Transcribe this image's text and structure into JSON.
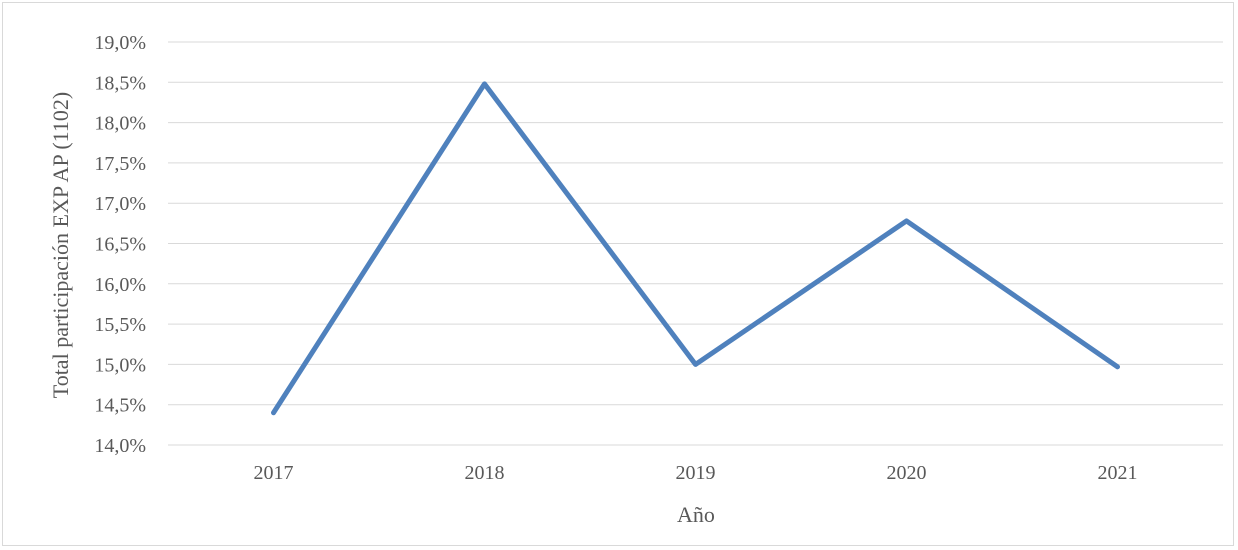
{
  "chart_data": {
    "type": "line",
    "title": "",
    "xlabel": "Año",
    "ylabel": "Total participación EXP AP (1102)",
    "categories": [
      "2017",
      "2018",
      "2019",
      "2020",
      "2021"
    ],
    "series": [
      {
        "values": [
          14.4,
          18.48,
          15.0,
          16.78,
          14.97
        ]
      }
    ],
    "ylim": [
      14.0,
      19.0
    ],
    "yticks": [
      14.0,
      14.5,
      15.0,
      15.5,
      16.0,
      16.5,
      17.0,
      17.5,
      18.0,
      18.5,
      19.0
    ],
    "ytick_labels": [
      "14,0%",
      "14,5%",
      "15,0%",
      "15,5%",
      "16,0%",
      "16,5%",
      "17,0%",
      "17,5%",
      "18,0%",
      "18,5%",
      "19,0%"
    ],
    "grid": true,
    "legend": "none",
    "colors": {
      "line": "#4f81bd",
      "grid": "#d9d9d9",
      "text": "#595959"
    }
  }
}
